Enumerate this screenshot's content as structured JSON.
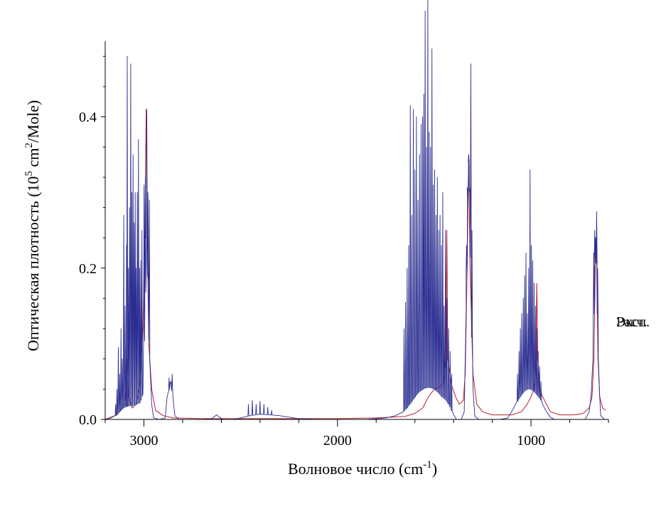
{
  "chart_data": {
    "type": "line",
    "xlabel": "Волновое число (cm",
    "xlabel_sup": "-1",
    "xlabel_end": ")",
    "ylabel": "Оптическая плотность (10",
    "ylabel_sup1": "5",
    "ylabel_mid": " cm",
    "ylabel_sup2": "2",
    "ylabel_end": "/Mole)",
    "xlim": [
      3200,
      600
    ],
    "ylim": [
      0,
      0.5
    ],
    "x_ticks": [
      3000,
      2000,
      1000
    ],
    "x_tick_labels": [
      "3000",
      "2000",
      "1000"
    ],
    "y_ticks": [
      0.0,
      0.2,
      0.4
    ],
    "y_tick_labels": [
      "0.0",
      "0.2",
      "0.4"
    ],
    "grid": false,
    "legend_position": "right",
    "series": [
      {
        "name": "Расч.",
        "color": "#b5202a",
        "style": "smooth",
        "points": [
          [
            3200,
            0.0
          ],
          [
            3150,
            0.005
          ],
          [
            3120,
            0.012
          ],
          [
            3100,
            0.022
          ],
          [
            3090,
            0.05
          ],
          [
            3085,
            0.08
          ],
          [
            3080,
            0.03
          ],
          [
            3060,
            0.015
          ],
          [
            3040,
            0.02
          ],
          [
            3020,
            0.05
          ],
          [
            3005,
            0.12
          ],
          [
            2995,
            0.25
          ],
          [
            2988,
            0.41
          ],
          [
            2983,
            0.25
          ],
          [
            2975,
            0.1
          ],
          [
            2960,
            0.04
          ],
          [
            2940,
            0.012
          ],
          [
            2900,
            0.005
          ],
          [
            2850,
            0.002
          ],
          [
            2700,
            0.001
          ],
          [
            2500,
            0.001
          ],
          [
            2300,
            0.001
          ],
          [
            2000,
            0.001
          ],
          [
            1800,
            0.002
          ],
          [
            1650,
            0.004
          ],
          [
            1600,
            0.008
          ],
          [
            1560,
            0.015
          ],
          [
            1530,
            0.03
          ],
          [
            1500,
            0.04
          ],
          [
            1470,
            0.043
          ],
          [
            1450,
            0.05
          ],
          [
            1440,
            0.08
          ],
          [
            1435,
            0.25
          ],
          [
            1430,
            0.08
          ],
          [
            1410,
            0.045
          ],
          [
            1390,
            0.03
          ],
          [
            1370,
            0.02
          ],
          [
            1350,
            0.025
          ],
          [
            1340,
            0.06
          ],
          [
            1330,
            0.2
          ],
          [
            1322,
            0.35
          ],
          [
            1315,
            0.2
          ],
          [
            1300,
            0.06
          ],
          [
            1280,
            0.02
          ],
          [
            1250,
            0.01
          ],
          [
            1200,
            0.006
          ],
          [
            1100,
            0.006
          ],
          [
            1050,
            0.01
          ],
          [
            1020,
            0.02
          ],
          [
            1000,
            0.03
          ],
          [
            985,
            0.04
          ],
          [
            975,
            0.08
          ],
          [
            970,
            0.18
          ],
          [
            965,
            0.08
          ],
          [
            955,
            0.04
          ],
          [
            940,
            0.03
          ],
          [
            920,
            0.02
          ],
          [
            900,
            0.01
          ],
          [
            850,
            0.006
          ],
          [
            780,
            0.006
          ],
          [
            730,
            0.008
          ],
          [
            700,
            0.015
          ],
          [
            685,
            0.03
          ],
          [
            675,
            0.08
          ],
          [
            668,
            0.2
          ],
          [
            664,
            0.235
          ],
          [
            660,
            0.2
          ],
          [
            654,
            0.08
          ],
          [
            645,
            0.03
          ],
          [
            630,
            0.015
          ],
          [
            615,
            0.012
          ]
        ]
      },
      {
        "name": "Эксп.",
        "color": "#2b2e91",
        "style": "spectrum",
        "baseline": [
          [
            3200,
            0.0
          ],
          [
            3170,
            0.002
          ],
          [
            3140,
            0.006
          ],
          [
            3120,
            0.012
          ],
          [
            3100,
            0.016
          ],
          [
            3080,
            0.018
          ],
          [
            3060,
            0.018
          ],
          [
            3040,
            0.02
          ],
          [
            3020,
            0.022
          ],
          [
            3005,
            0.035
          ],
          [
            2995,
            0.15
          ],
          [
            2985,
            0.24
          ],
          [
            2978,
            0.18
          ],
          [
            2970,
            0.08
          ],
          [
            2960,
            0.02
          ],
          [
            2950,
            0.002
          ],
          [
            2920,
            0.0
          ],
          [
            2890,
            0.002
          ],
          [
            2880,
            0.03
          ],
          [
            2870,
            0.04
          ],
          [
            2860,
            0.05
          ],
          [
            2850,
            0.03
          ],
          [
            2840,
            0.005
          ],
          [
            2820,
            0.0
          ],
          [
            2700,
            0.0
          ],
          [
            2650,
            0.001
          ],
          [
            2625,
            0.006
          ],
          [
            2610,
            0.003
          ],
          [
            2590,
            0.0
          ],
          [
            2540,
            0.0
          ],
          [
            2500,
            0.002
          ],
          [
            2450,
            0.005
          ],
          [
            2400,
            0.007
          ],
          [
            2350,
            0.006
          ],
          [
            2300,
            0.005
          ],
          [
            2250,
            0.003
          ],
          [
            2200,
            0.001
          ],
          [
            2100,
            0.0
          ],
          [
            1950,
            0.0
          ],
          [
            1850,
            0.0
          ],
          [
            1750,
            0.002
          ],
          [
            1700,
            0.005
          ],
          [
            1660,
            0.01
          ],
          [
            1640,
            0.016
          ],
          [
            1620,
            0.022
          ],
          [
            1600,
            0.03
          ],
          [
            1580,
            0.036
          ],
          [
            1560,
            0.04
          ],
          [
            1540,
            0.042
          ],
          [
            1520,
            0.042
          ],
          [
            1500,
            0.04
          ],
          [
            1480,
            0.036
          ],
          [
            1460,
            0.03
          ],
          [
            1440,
            0.026
          ],
          [
            1420,
            0.018
          ],
          [
            1410,
            0.012
          ],
          [
            1400,
            0.006
          ],
          [
            1385,
            0.0
          ],
          [
            1360,
            0.0
          ],
          [
            1345,
            0.01
          ],
          [
            1335,
            0.15
          ],
          [
            1328,
            0.3
          ],
          [
            1322,
            0.34
          ],
          [
            1315,
            0.3
          ],
          [
            1308,
            0.15
          ],
          [
            1300,
            0.04
          ],
          [
            1290,
            0.004
          ],
          [
            1270,
            0.0
          ],
          [
            1230,
            0.0
          ],
          [
            1160,
            0.0
          ],
          [
            1120,
            0.002
          ],
          [
            1100,
            0.01
          ],
          [
            1080,
            0.02
          ],
          [
            1060,
            0.028
          ],
          [
            1040,
            0.036
          ],
          [
            1020,
            0.04
          ],
          [
            1000,
            0.04
          ],
          [
            980,
            0.036
          ],
          [
            960,
            0.03
          ],
          [
            950,
            0.026
          ],
          [
            940,
            0.02
          ],
          [
            920,
            0.01
          ],
          [
            900,
            0.003
          ],
          [
            880,
            0.0
          ],
          [
            760,
            0.0
          ],
          [
            720,
            0.0
          ],
          [
            700,
            0.01
          ],
          [
            690,
            0.03
          ],
          [
            680,
            0.08
          ],
          [
            672,
            0.2
          ],
          [
            666,
            0.24
          ],
          [
            660,
            0.2
          ],
          [
            652,
            0.08
          ],
          [
            645,
            0.03
          ],
          [
            640,
            0.005
          ],
          [
            620,
            0.0
          ]
        ],
        "peaks": [
          [
            3146,
            0.02
          ],
          [
            3139,
            0.04
          ],
          [
            3132,
            0.095
          ],
          [
            3125,
            0.06
          ],
          [
            3118,
            0.12
          ],
          [
            3111,
            0.08
          ],
          [
            3104,
            0.27
          ],
          [
            3097,
            0.15
          ],
          [
            3090,
            0.23
          ],
          [
            3086,
            0.48
          ],
          [
            3080,
            0.2
          ],
          [
            3074,
            0.28
          ],
          [
            3068,
            0.47
          ],
          [
            3062,
            0.3
          ],
          [
            3056,
            0.35
          ],
          [
            3050,
            0.26
          ],
          [
            3045,
            0.3
          ],
          [
            3040,
            0.2
          ],
          [
            3034,
            0.3
          ],
          [
            3028,
            0.37
          ],
          [
            3022,
            0.2
          ],
          [
            3016,
            0.21
          ],
          [
            3010,
            0.25
          ],
          [
            2999,
            0.31
          ],
          [
            2993,
            0.32
          ],
          [
            2985,
            0.41
          ],
          [
            2979,
            0.3
          ],
          [
            2972,
            0.29
          ],
          [
            2870,
            0.055
          ],
          [
            2862,
            0.05
          ],
          [
            2854,
            0.06
          ],
          [
            2460,
            0.02
          ],
          [
            2440,
            0.025
          ],
          [
            2420,
            0.02
          ],
          [
            2400,
            0.024
          ],
          [
            2380,
            0.02
          ],
          [
            2360,
            0.016
          ],
          [
            2340,
            0.012
          ],
          [
            1656,
            0.12
          ],
          [
            1648,
            0.155
          ],
          [
            1640,
            0.2
          ],
          [
            1632,
            0.23
          ],
          [
            1624,
            0.415
          ],
          [
            1616,
            0.27
          ],
          [
            1608,
            0.41
          ],
          [
            1600,
            0.33
          ],
          [
            1592,
            0.4
          ],
          [
            1584,
            0.29
          ],
          [
            1576,
            0.35
          ],
          [
            1568,
            0.39
          ],
          [
            1560,
            0.4
          ],
          [
            1554,
            0.43
          ],
          [
            1547,
            0.54
          ],
          [
            1540,
            0.36
          ],
          [
            1533,
            0.56
          ],
          [
            1526,
            0.38
          ],
          [
            1519,
            0.36
          ],
          [
            1512,
            0.49
          ],
          [
            1505,
            0.31
          ],
          [
            1498,
            0.33
          ],
          [
            1491,
            0.27
          ],
          [
            1484,
            0.32
          ],
          [
            1477,
            0.25
          ],
          [
            1470,
            0.27
          ],
          [
            1463,
            0.23
          ],
          [
            1456,
            0.3
          ],
          [
            1449,
            0.15
          ],
          [
            1442,
            0.25
          ],
          [
            1435,
            0.16
          ],
          [
            1426,
            0.12
          ],
          [
            1418,
            0.09
          ],
          [
            1410,
            0.06
          ],
          [
            1333,
            0.23
          ],
          [
            1327,
            0.28
          ],
          [
            1322,
            0.35
          ],
          [
            1316,
            0.3
          ],
          [
            1311,
            0.47
          ],
          [
            1305,
            0.25
          ],
          [
            1070,
            0.06
          ],
          [
            1062,
            0.09
          ],
          [
            1055,
            0.12
          ],
          [
            1048,
            0.14
          ],
          [
            1040,
            0.16
          ],
          [
            1033,
            0.19
          ],
          [
            1026,
            0.22
          ],
          [
            1019,
            0.14
          ],
          [
            1012,
            0.2
          ],
          [
            1005,
            0.33
          ],
          [
            998,
            0.23
          ],
          [
            991,
            0.21
          ],
          [
            984,
            0.18
          ],
          [
            977,
            0.15
          ],
          [
            970,
            0.12
          ],
          [
            963,
            0.09
          ],
          [
            956,
            0.07
          ],
          [
            949,
            0.05
          ],
          [
            676,
            0.22
          ],
          [
            671,
            0.25
          ],
          [
            666,
            0.24
          ],
          [
            661,
            0.275
          ],
          [
            656,
            0.2
          ]
        ]
      }
    ]
  }
}
